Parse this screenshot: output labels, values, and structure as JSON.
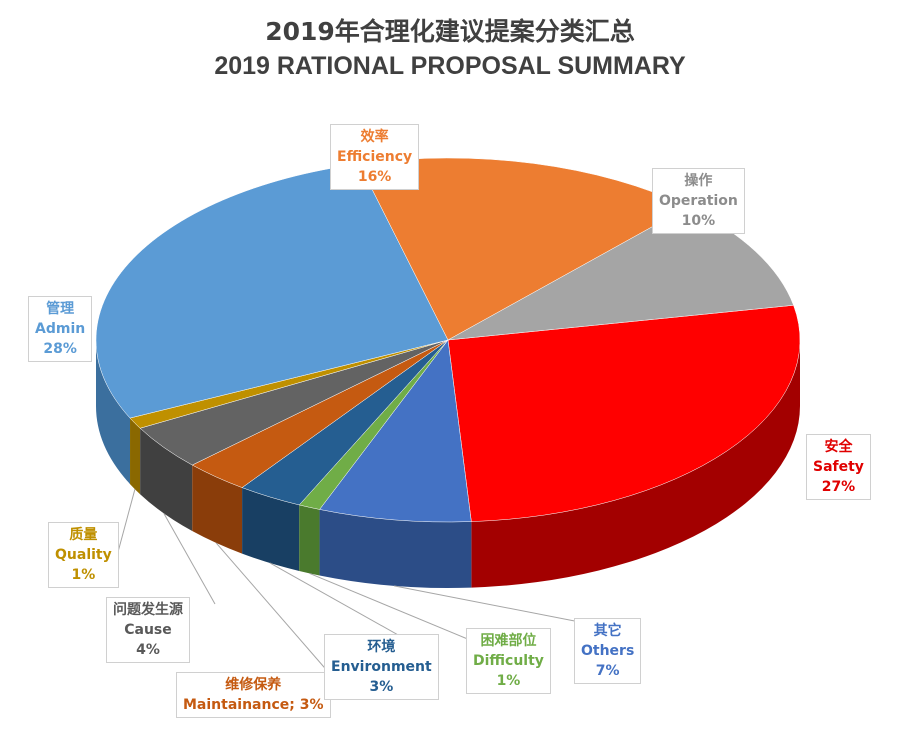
{
  "title_cn": "2019年合理化建议提案分类汇总",
  "title_en": "2019 RATIONAL PROPOSAL SUMMARY",
  "chart_data": {
    "type": "pie",
    "title": "2019 RATIONAL PROPOSAL SUMMARY",
    "slices": [
      {
        "key": "safety",
        "cn": "安全",
        "en": "Safety",
        "value": 27,
        "label": "27%",
        "color": "#ff0000",
        "dark": "#a30000"
      },
      {
        "key": "others",
        "cn": "其它",
        "en": "Others",
        "value": 7,
        "label": "7%",
        "color": "#4472c4",
        "dark": "#2c4d87"
      },
      {
        "key": "difficulty",
        "cn": "困难部位",
        "en": "Difficulty",
        "value": 1,
        "label": "1%",
        "color": "#70ad47",
        "dark": "#4a7a2d"
      },
      {
        "key": "environment",
        "cn": "环境",
        "en": "Environment",
        "value": 3,
        "label": "3%",
        "color": "#255e91",
        "dark": "#183f63"
      },
      {
        "key": "maintainance",
        "cn": "维修保养",
        "en": "Maintainance; 3%",
        "value": 3,
        "label": "",
        "color": "#c55a11",
        "dark": "#8a3d0a"
      },
      {
        "key": "cause",
        "cn": "问题发生源",
        "en": "Cause",
        "value": 4,
        "label": "4%",
        "color": "#636363",
        "dark": "#404040"
      },
      {
        "key": "quality",
        "cn": "质量",
        "en": "Quality",
        "value": 1,
        "label": "1%",
        "color": "#bf9000",
        "dark": "#8a6800"
      },
      {
        "key": "admin",
        "cn": "管理",
        "en": "Admin",
        "value": 28,
        "label": "28%",
        "color": "#5b9bd5",
        "dark": "#3b6f9e"
      },
      {
        "key": "efficiency",
        "cn": "效率",
        "en": "Efficiency",
        "value": 16,
        "label": "16%",
        "color": "#ed7d31",
        "dark": "#a8551f"
      },
      {
        "key": "operation",
        "cn": "操作",
        "en": "Operation",
        "value": 10,
        "label": "10%",
        "color": "#a5a5a5",
        "dark": "#707070"
      }
    ],
    "label_colors": {
      "efficiency": "#ed7d31",
      "operation": "#8c8c8c",
      "admin": "#5b9bd5",
      "safety": "#e00000",
      "others": "#4472c4",
      "difficulty": "#70ad47",
      "environment": "#255e91",
      "maintainance": "#c55a11",
      "cause": "#595959",
      "quality": "#bf9000"
    }
  }
}
